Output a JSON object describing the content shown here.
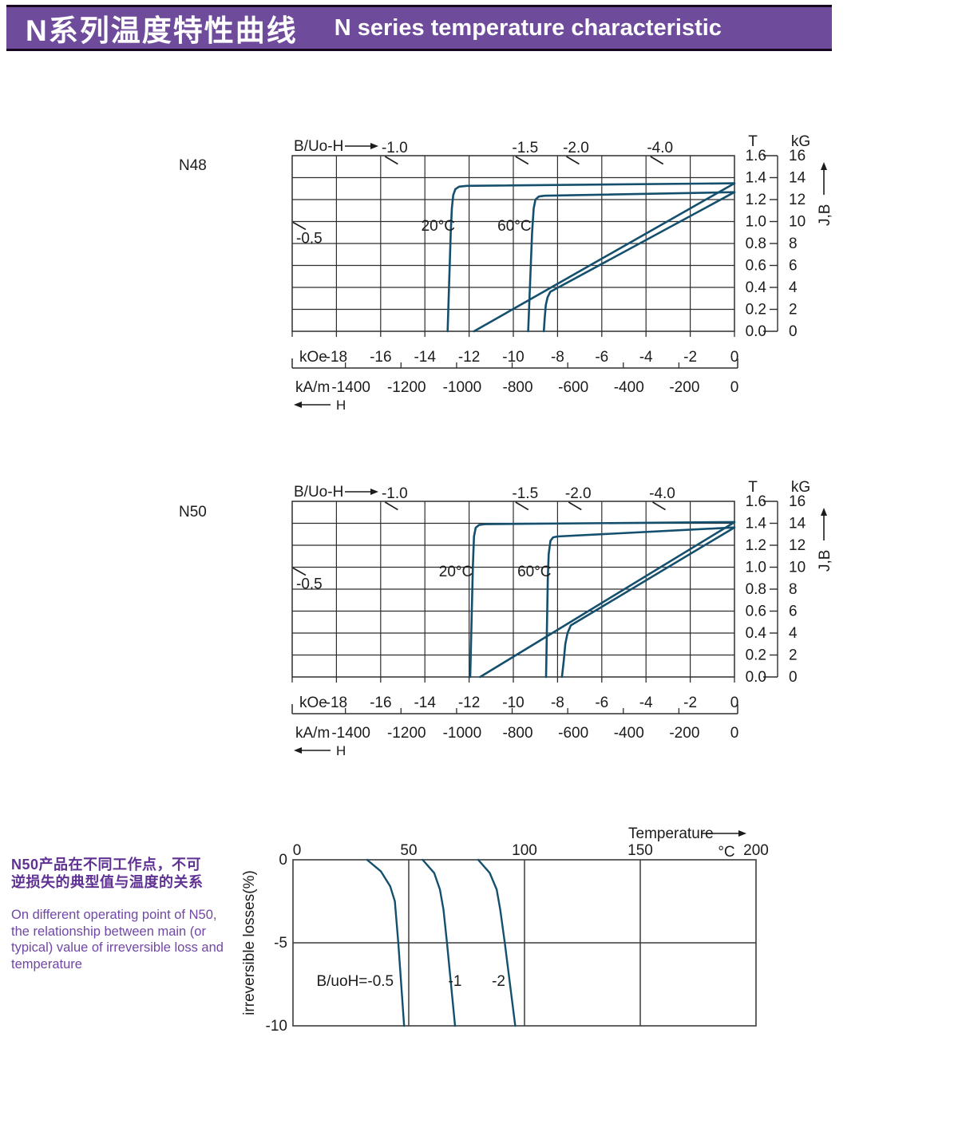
{
  "header": {
    "title_zh": "N系列温度特性曲线",
    "title_en": "N  series temperature characteristic",
    "bg_color": "#6F4B9B",
    "border_color": "#17091F"
  },
  "colors": {
    "curve": "#14506E",
    "grid": "#2E2E2E",
    "text": "#1C1C1C",
    "accent_zh": "#5F3193",
    "accent_en": "#7147A5"
  },
  "side_note": {
    "zh_line1": "N50产品在不同工作点，不可",
    "zh_line2": "逆损失的典型值与温度的关系",
    "en_line1": "On different operating point of N50,",
    "en_line2": "the relationship between main (or",
    "en_line3": "typical) value of irreversible loss and",
    "en_line4": "temperature"
  },
  "chart_data": [
    {
      "type": "line",
      "title": "N48",
      "corner_label": "B/Uo-H",
      "x_range_koe": [
        -20,
        0
      ],
      "y_range_T": [
        0,
        1.6
      ],
      "x_unit_koe": "kOe",
      "x_ticks_koe": [
        "-18",
        "-16",
        "-14",
        "-12",
        "-10",
        "-8",
        "-6",
        "-4",
        "-2",
        "0"
      ],
      "x_unit_kam": "kA/m",
      "x_ticks_kam": [
        "-1400",
        "-1200",
        "-1000",
        "-800",
        "-600",
        "-400",
        "-200",
        "0"
      ],
      "x_arrow_label": "H",
      "right_axis": {
        "col1_header": "T",
        "col1_ticks": [
          "1.6",
          "1.4",
          "1.2",
          "1.0",
          "0.8",
          "0.6",
          "0.4",
          "0.2",
          "0.0"
        ],
        "col2_header": "kG",
        "col2_ticks": [
          "16",
          "14",
          "12",
          "10",
          "8",
          "6",
          "4",
          "2",
          "0"
        ],
        "axis_label": "J,B"
      },
      "load_lines": [
        {
          "label": "-0.5",
          "edge": "left",
          "exit_B": 1.0
        },
        {
          "label": "-1.0",
          "edge": "top",
          "exit_H": -15.8
        },
        {
          "label": "-1.5",
          "edge": "top",
          "exit_H": -9.9
        },
        {
          "label": "-2.0",
          "edge": "top",
          "exit_H": -7.6
        },
        {
          "label": "-4.0",
          "edge": "top",
          "exit_H": -3.8
        }
      ],
      "curves": [
        {
          "label": "20°C",
          "label_at": [
            -13.4,
            0.96
          ],
          "j_points": [
            [
              0,
              1.348
            ],
            [
              -12.1,
              1.325
            ],
            [
              -12.45,
              1.318
            ],
            [
              -12.62,
              1.295
            ],
            [
              -12.72,
              1.24
            ],
            [
              -12.78,
              1.12
            ],
            [
              -12.83,
              0.9
            ],
            [
              -12.97,
              0
            ]
          ],
          "b_points": [
            [
              0,
              1.348
            ],
            [
              -11.78,
              0
            ]
          ]
        },
        {
          "label": "60°C",
          "label_at": [
            -9.95,
            0.96
          ],
          "j_points": [
            [
              0,
              1.268
            ],
            [
              -8.6,
              1.235
            ],
            [
              -8.85,
              1.228
            ],
            [
              -9.0,
              1.2
            ],
            [
              -9.08,
              1.12
            ],
            [
              -9.15,
              0.9
            ],
            [
              -9.33,
              0
            ]
          ],
          "b_points": [
            [
              0,
              1.268
            ],
            [
              -8.33,
              0.36
            ],
            [
              -8.45,
              0.31
            ],
            [
              -8.53,
              0.24
            ],
            [
              -8.58,
              0.12
            ],
            [
              -8.62,
              0
            ]
          ]
        }
      ]
    },
    {
      "type": "line",
      "title": "N50",
      "corner_label": "B/Uo-H",
      "x_range_koe": [
        -20,
        0
      ],
      "y_range_T": [
        0,
        1.6
      ],
      "x_unit_koe": "kOe",
      "x_ticks_koe": [
        "-18",
        "-16",
        "-14",
        "-12",
        "-10",
        "-8",
        "-6",
        "-4",
        "-2",
        "0"
      ],
      "x_unit_kam": "kA/m",
      "x_ticks_kam": [
        "-1400",
        "-1200",
        "-1000",
        "-800",
        "-600",
        "-400",
        "-200",
        "0"
      ],
      "x_arrow_label": "H",
      "right_axis": {
        "col1_header": "T",
        "col1_ticks": [
          "1.6",
          "1.4",
          "1.2",
          "1.0",
          "0.8",
          "0.6",
          "0.4",
          "0.2",
          "0.0"
        ],
        "col2_header": "kG",
        "col2_ticks": [
          "16",
          "14",
          "12",
          "10",
          "8",
          "6",
          "4",
          "2",
          "0"
        ],
        "axis_label": "J,B"
      },
      "load_lines": [
        {
          "label": "-0.5",
          "edge": "left",
          "exit_B": 1.0
        },
        {
          "label": "-1.0",
          "edge": "top",
          "exit_H": -15.8
        },
        {
          "label": "-1.5",
          "edge": "top",
          "exit_H": -9.9
        },
        {
          "label": "-2.0",
          "edge": "top",
          "exit_H": -7.5
        },
        {
          "label": "-4.0",
          "edge": "top",
          "exit_H": -3.7
        }
      ],
      "curves": [
        {
          "label": "20°C",
          "label_at": [
            -12.6,
            0.96
          ],
          "j_points": [
            [
              0,
              1.412
            ],
            [
              -11.3,
              1.392
            ],
            [
              -11.55,
              1.385
            ],
            [
              -11.7,
              1.36
            ],
            [
              -11.78,
              1.28
            ],
            [
              -11.83,
              1.0
            ],
            [
              -11.95,
              0
            ]
          ],
          "b_points": [
            [
              0,
              1.41
            ],
            [
              -11.5,
              0
            ]
          ]
        },
        {
          "label": "60°C",
          "label_at": [
            -9.05,
            0.96
          ],
          "j_points": [
            [
              0,
              1.362
            ],
            [
              -8.0,
              1.28
            ],
            [
              -8.2,
              1.272
            ],
            [
              -8.32,
              1.24
            ],
            [
              -8.4,
              1.12
            ],
            [
              -8.44,
              0.9
            ],
            [
              -8.52,
              0
            ]
          ],
          "b_points": [
            [
              0,
              1.362
            ],
            [
              -7.4,
              0.47
            ],
            [
              -7.55,
              0.4
            ],
            [
              -7.65,
              0.3
            ],
            [
              -7.72,
              0.15
            ],
            [
              -7.8,
              0
            ]
          ]
        }
      ]
    },
    {
      "type": "line",
      "title": "irreversible losses vs temperature (N50)",
      "x_axis_label": "Temperature",
      "x_unit": "°C",
      "x_ticks": [
        "0",
        "50",
        "100",
        "150",
        "200"
      ],
      "x_range": [
        0,
        200
      ],
      "y_axis_label": "irreversible  losses(%)",
      "y_ticks": [
        "0",
        "-5",
        "-10"
      ],
      "y_range": [
        0,
        -10
      ],
      "series": [
        {
          "label": "B/uoH=-0.5",
          "label_anchor": "end",
          "label_at": [
            43.5,
            -7.3
          ],
          "points": [
            [
              32,
              0
            ],
            [
              38,
              -0.7
            ],
            [
              42,
              -1.6
            ],
            [
              44,
              -2.5
            ],
            [
              45.5,
              -5
            ],
            [
              48,
              -10
            ]
          ]
        },
        {
          "label": "-1",
          "label_anchor": "middle",
          "label_at": [
            70,
            -7.3
          ],
          "points": [
            [
              56,
              0
            ],
            [
              61,
              -0.8
            ],
            [
              63.5,
              -1.8
            ],
            [
              65,
              -3
            ],
            [
              66.5,
              -5
            ],
            [
              70,
              -10
            ]
          ]
        },
        {
          "label": "-2",
          "label_anchor": "middle",
          "label_at": [
            88.8,
            -7.3
          ],
          "points": [
            [
              80,
              0
            ],
            [
              85,
              -0.8
            ],
            [
              88,
              -1.8
            ],
            [
              89.5,
              -3
            ],
            [
              91.5,
              -5
            ],
            [
              96,
              -10
            ]
          ]
        }
      ]
    }
  ]
}
